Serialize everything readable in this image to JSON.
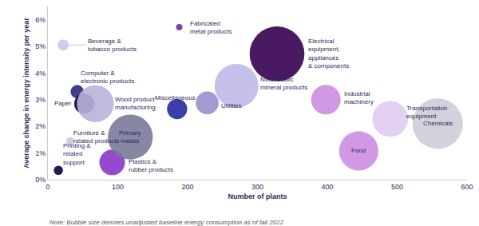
{
  "chart_data": {
    "type": "bubble",
    "x_label": "Number of plants",
    "y_label": "Average change in energy intensity per year",
    "labels": [
      "Printing &\nrelated\nsupport",
      "Beverage &\ntobacco products",
      "Furniture &\nrelated products",
      "Computer &\nelectronic products",
      "Paper",
      "Wood product\nmanufacturing",
      "Plastics &\nrubber products",
      "Primary\nmetals",
      "Fabricated\nmetal products",
      "Miscellaneous",
      "Utilities",
      "Nonmetallic\nmineral products",
      "Electrical\nequipment,\nappliances\n& components",
      "Industrial\nmachinery",
      "Food",
      "Transportation\nequipment",
      "Chemicals"
    ],
    "x": [
      15,
      22,
      32,
      42,
      52,
      68,
      92,
      118,
      188,
      185,
      228,
      270,
      328,
      398,
      445,
      490,
      558
    ],
    "values": [
      0.35,
      5.05,
      1.45,
      3.3,
      2.85,
      2.85,
      0.65,
      1.6,
      5.72,
      2.65,
      2.88,
      3.52,
      4.72,
      3.0,
      1.08,
      2.28,
      2.1
    ],
    "sizes": [
      8,
      10,
      7,
      13,
      22,
      48,
      30,
      62,
      5,
      22,
      26,
      60,
      80,
      36,
      52,
      46,
      72
    ],
    "colors": [
      "#0d0040",
      "#c8c8e0",
      "#c8c8e0",
      "#2d2880",
      "#0d0040",
      "#b8b4d8",
      "#8b35c8",
      "#7a7a9a",
      "#6b2fa0",
      "#2828a0",
      "#9890cc",
      "#c0b8e8",
      "#350050",
      "#cc8ee0",
      "#cc8ee0",
      "#e0caf0",
      "#d0ccd8"
    ],
    "annotations": [
      "Note: Bubble size denotes unadjusted baseline energy consumption as of fall 2022"
    ],
    "xlim": [
      0,
      600
    ],
    "xticks": [
      0,
      100,
      200,
      300,
      400,
      500,
      600
    ],
    "ylim": [
      0,
      6.5
    ],
    "yticks": [
      {
        "value": 0,
        "label": "0%"
      },
      {
        "value": 1,
        "label": "1%"
      },
      {
        "value": 2,
        "label": "2%"
      },
      {
        "value": 3,
        "label": "3%"
      },
      {
        "value": 4,
        "label": "4%"
      },
      {
        "value": 5,
        "label": "5%"
      },
      {
        "value": 6,
        "label": "6%"
      }
    ],
    "grid": false
  }
}
